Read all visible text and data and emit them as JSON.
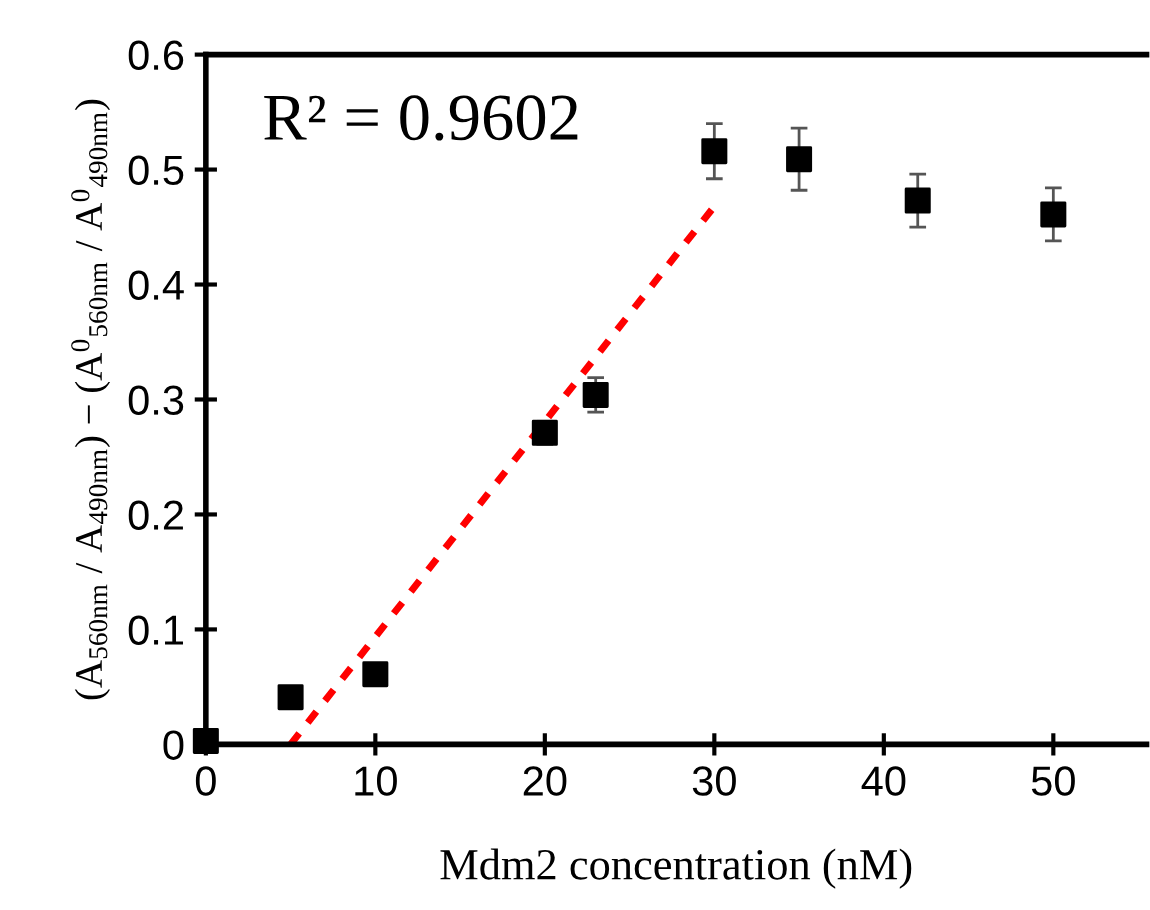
{
  "chart_data": {
    "type": "scatter",
    "xlabel": "Mdm2 concentration (nM)",
    "ylabel": "(A$_{560nm}$ / A$_{490nm}$) − (A$^{0}$$_{560nm}$ / A$^{0}$$_{490nm}$)",
    "annotations": [
      "R² = 0.9602"
    ],
    "series": [
      {
        "color": "#000000",
        "marker": "square",
        "x": [
          0,
          5,
          10,
          20,
          23,
          30,
          35,
          42,
          50
        ],
        "values": [
          0.003,
          0.041,
          0.061,
          0.271,
          0.304,
          0.516,
          0.509,
          0.473,
          0.461
        ],
        "errors": [
          null,
          null,
          null,
          0.01,
          0.015,
          0.024,
          0.027,
          0.023,
          0.023
        ]
      },
      {
        "type": "line",
        "color": "#ff0000",
        "line_style": "dashed",
        "marker": "none",
        "x": [
          5,
          30
        ],
        "values": [
          0,
          0.468
        ]
      }
    ],
    "xlim": [
      0,
      55.5
    ],
    "ylim": [
      0,
      0.6
    ],
    "xticks": [
      0,
      10,
      20,
      30,
      40,
      50
    ],
    "yticks": [
      0,
      0.1,
      0.2,
      0.3,
      0.4,
      0.5,
      0.6
    ],
    "grid": false,
    "legend": false
  }
}
